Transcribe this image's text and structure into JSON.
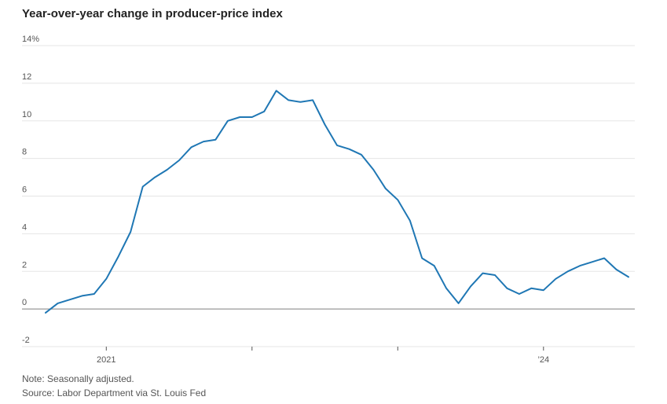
{
  "title": "Year-over-year change in producer-price index",
  "note": "Note: Seasonally adjusted.",
  "source": "Source: Labor Department via St. Louis Fed",
  "colors": {
    "line": "#1f77b4",
    "grid": "#e5e5e5",
    "zero_line": "#999999"
  },
  "chart_data": {
    "type": "line",
    "xlabel": "",
    "ylabel": "",
    "ylim": [
      -2,
      14
    ],
    "y_ticks": [
      {
        "value": 14,
        "label": "14%"
      },
      {
        "value": 12,
        "label": "12"
      },
      {
        "value": 10,
        "label": "10"
      },
      {
        "value": 8,
        "label": "8"
      },
      {
        "value": 6,
        "label": "6"
      },
      {
        "value": 4,
        "label": "4"
      },
      {
        "value": 2,
        "label": "2"
      },
      {
        "value": 0,
        "label": "0"
      },
      {
        "value": -2,
        "label": "-2"
      }
    ],
    "x_ticks": [
      {
        "date": "2021-01",
        "label": "2021"
      },
      {
        "date": "2022-01",
        "label": ""
      },
      {
        "date": "2023-01",
        "label": ""
      },
      {
        "date": "2024-01",
        "label": "’24"
      }
    ],
    "grid": true,
    "series": [
      {
        "x": [
          "2020-08",
          "2020-09",
          "2020-10",
          "2020-11",
          "2020-12",
          "2021-01",
          "2021-02",
          "2021-03",
          "2021-04",
          "2021-05",
          "2021-06",
          "2021-07",
          "2021-08",
          "2021-09",
          "2021-10",
          "2021-11",
          "2021-12",
          "2022-01",
          "2022-02",
          "2022-03",
          "2022-04",
          "2022-05",
          "2022-06",
          "2022-07",
          "2022-08",
          "2022-09",
          "2022-10",
          "2022-11",
          "2022-12",
          "2023-01",
          "2023-02",
          "2023-03",
          "2023-04",
          "2023-05",
          "2023-06",
          "2023-07",
          "2023-08",
          "2023-09",
          "2023-10",
          "2023-11",
          "2023-12",
          "2024-01",
          "2024-02",
          "2024-03",
          "2024-04",
          "2024-05",
          "2024-06",
          "2024-07",
          "2024-08"
        ],
        "values": [
          -0.2,
          0.3,
          0.5,
          0.7,
          0.8,
          1.6,
          2.8,
          4.1,
          6.5,
          7.0,
          7.4,
          7.9,
          8.6,
          8.9,
          9.0,
          10.0,
          10.2,
          10.2,
          10.5,
          11.6,
          11.1,
          11.0,
          11.1,
          9.8,
          8.7,
          8.5,
          8.2,
          7.4,
          6.4,
          5.8,
          4.7,
          2.7,
          2.3,
          1.1,
          0.3,
          1.2,
          1.9,
          1.8,
          1.1,
          0.8,
          1.1,
          1.0,
          1.6,
          2.0,
          2.3,
          2.5,
          2.7,
          2.1,
          1.7
        ]
      }
    ]
  }
}
